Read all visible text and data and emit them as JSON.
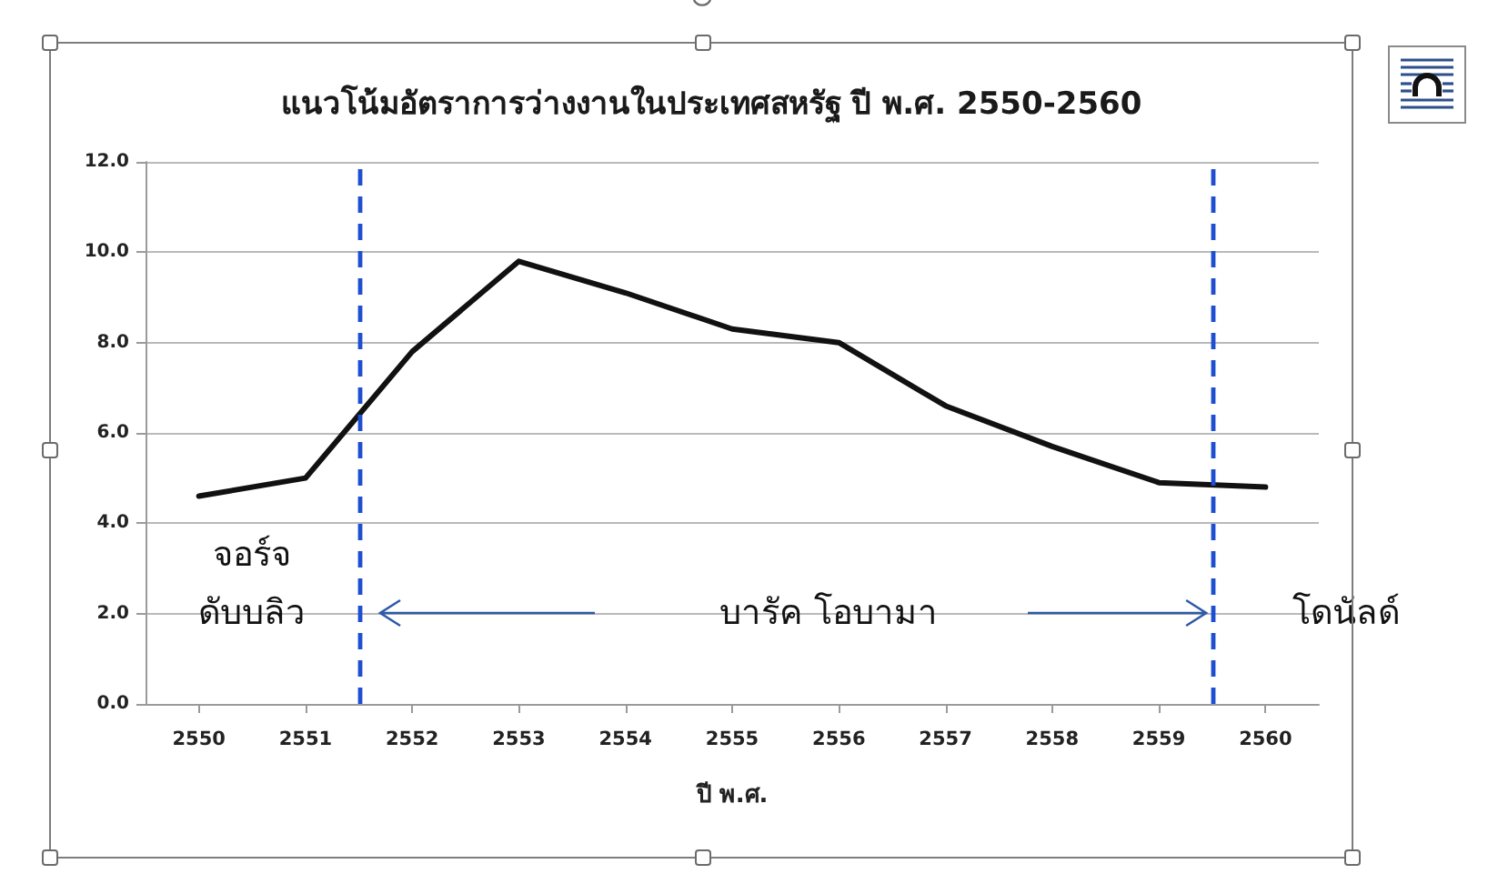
{
  "chart_data": {
    "type": "line",
    "title": "แนวโน้มอัตราการว่างงานในประเทศสหรัฐ ปี พ.ศ. 2550-2560",
    "xlabel": "ปี พ.ศ.",
    "x": [
      2550,
      2551,
      2552,
      2553,
      2554,
      2555,
      2556,
      2557,
      2558,
      2559,
      2560
    ],
    "values": [
      4.6,
      5.0,
      7.8,
      9.8,
      9.1,
      8.3,
      8.0,
      6.6,
      5.7,
      4.9,
      4.8
    ],
    "color": "#111111",
    "xlim": [
      2549.5,
      2560.5
    ],
    "xticks": [
      2550,
      2551,
      2552,
      2553,
      2554,
      2555,
      2556,
      2557,
      2558,
      2559,
      2560
    ],
    "ylim": [
      0,
      12
    ],
    "yticks": [
      {
        "value": 0,
        "label": "0.0"
      },
      {
        "value": 2,
        "label": "2.0"
      },
      {
        "value": 4,
        "label": "4.0"
      },
      {
        "value": 6,
        "label": "6.0"
      },
      {
        "value": 8,
        "label": "8.0"
      },
      {
        "value": 10,
        "label": "10.0"
      },
      {
        "value": 12,
        "label": "12.0"
      }
    ],
    "grid": "y",
    "marker": "none",
    "ref_lines": [
      {
        "axis": "x",
        "value": 2551.5,
        "color": "#1f4fd1",
        "line_style": "dashed"
      },
      {
        "axis": "x",
        "value": 2559.5,
        "color": "#1f4fd1",
        "line_style": "dashed"
      }
    ],
    "annotations": [
      "จอร์จ\nดับบลิว",
      "บารัค โอบามา",
      "โดนัลด์"
    ]
  }
}
